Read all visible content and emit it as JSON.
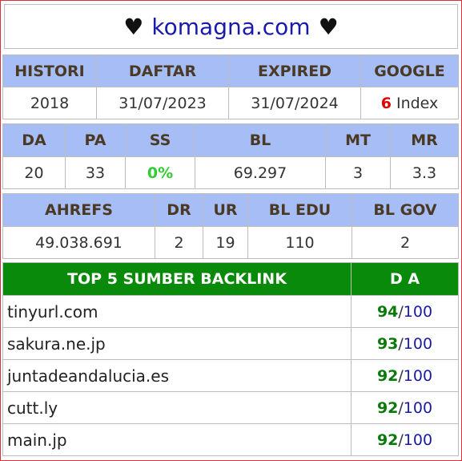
{
  "header": {
    "heart_left": "♥",
    "domain": "komagna.com",
    "heart_right": "♥"
  },
  "table1": {
    "headers": [
      "HISTORI",
      "DAFTAR",
      "EXPIRED",
      "GOOGLE"
    ],
    "values": [
      "2018",
      "31/07/2023",
      "31/07/2024"
    ],
    "google_count": "6",
    "google_suffix": " Index"
  },
  "table2": {
    "headers": [
      "DA",
      "PA",
      "SS",
      "BL",
      "MT",
      "MR"
    ],
    "values": [
      "20",
      "33",
      "0%",
      "69.297",
      "3",
      "3.3"
    ]
  },
  "table3": {
    "headers": [
      "AHREFS",
      "DR",
      "UR",
      "BL EDU",
      "BL GOV"
    ],
    "values": [
      "49.038.691",
      "2",
      "19",
      "110",
      "2"
    ]
  },
  "table4": {
    "headers": [
      "TOP 5 SUMBER BACKLINK",
      "D A"
    ],
    "separator": "/",
    "rows": [
      {
        "site": "tinyurl.com",
        "da": "94",
        "max": "100"
      },
      {
        "site": "sakura.ne.jp",
        "da": "93",
        "max": "100"
      },
      {
        "site": "juntadeandalucia.es",
        "da": "92",
        "max": "100"
      },
      {
        "site": "cutt.ly",
        "da": "92",
        "max": "100"
      },
      {
        "site": "main.jp",
        "da": "92",
        "max": "100"
      }
    ]
  },
  "colors": {
    "frame_border": "#d9303a",
    "header_bg": "#a6bdf5",
    "backlink_header_bg": "#0a8a0a",
    "google_count": "#e00000",
    "ss_value": "#33cc33",
    "domain": "#1a1aaa"
  }
}
